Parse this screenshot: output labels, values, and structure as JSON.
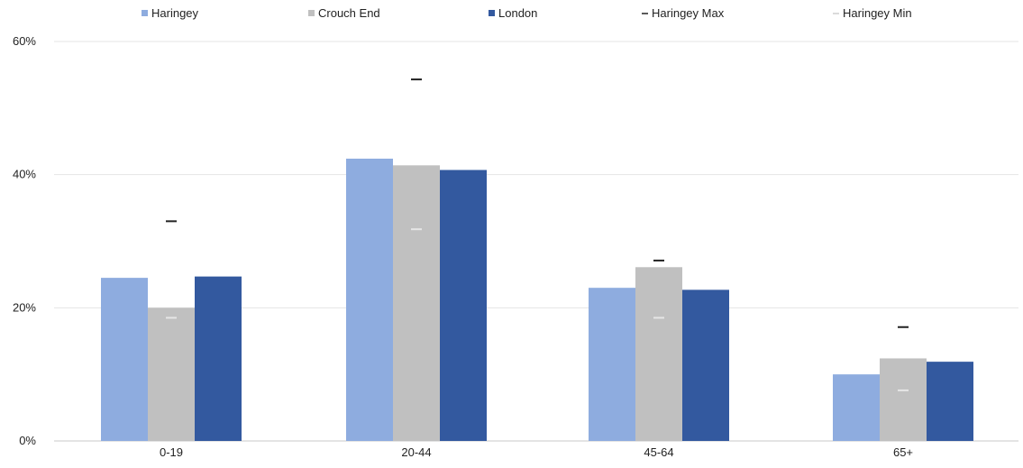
{
  "chart_data": {
    "type": "bar",
    "categories": [
      "0-19",
      "20-44",
      "45-64",
      "65+"
    ],
    "series": [
      {
        "name": "Haringey",
        "values": [
          24.5,
          42.4,
          23.0,
          10.0
        ],
        "color": "#8eacdf"
      },
      {
        "name": "Crouch End",
        "values": [
          20.0,
          41.4,
          26.1,
          12.4
        ],
        "color": "#c0c0c0"
      },
      {
        "name": "London",
        "values": [
          24.7,
          40.7,
          22.7,
          11.9
        ],
        "color": "#33599f"
      }
    ],
    "markers": [
      {
        "name": "Haringey Max",
        "values": [
          33.0,
          54.3,
          27.1,
          17.1
        ],
        "color": "#222222"
      },
      {
        "name": "Haringey Min",
        "values": [
          18.5,
          31.8,
          18.5,
          7.6
        ],
        "color": "#e6e6e6"
      }
    ],
    "y_ticks": [
      "0%",
      "20%",
      "40%",
      "60%"
    ],
    "y_tick_values": [
      0,
      20,
      40,
      60
    ],
    "ylim": [
      0,
      60
    ],
    "grid": true,
    "legend_position": "top",
    "title": "",
    "xlabel": "",
    "ylabel": ""
  }
}
